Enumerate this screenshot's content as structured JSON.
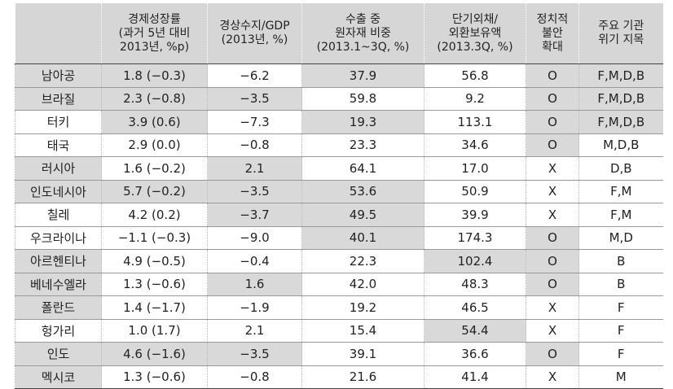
{
  "table": {
    "header": [
      "",
      "경제성장률\n(과거 5년 대비\n2013년, %p)",
      "경상수지/GDP\n(2013년, %)",
      "수출 중\n원자재 비중\n(2013.1~3Q, %)",
      "단기외채/\n외환보유액\n(2013.3Q, %)",
      "정치적\n불안\n확대",
      "주요 기관\n위기 지목"
    ],
    "rows": [
      [
        "남아공",
        "1.8 (−0.3)",
        "−6.2",
        "37.9",
        "56.8",
        "O",
        "F,M,D,B"
      ],
      [
        "브라질",
        "2.3 (−0.8)",
        "−3.5",
        "59.8",
        "9.2",
        "O",
        "F,M,D,B"
      ],
      [
        "터키",
        "3.9 (0.6)",
        "−7.3",
        "19.3",
        "113.1",
        "O",
        "F,M,D,B"
      ],
      [
        "태국",
        "2.9 (0.0)",
        "−0.8",
        "23.3",
        "34.6",
        "O",
        "M,D,B"
      ],
      [
        "러시아",
        "1.6 (−0.2)",
        "2.1",
        "64.1",
        "17.0",
        "X",
        "D,B"
      ],
      [
        "인도네시아",
        "5.7 (−0.2)",
        "−3.5",
        "53.6",
        "50.9",
        "X",
        "F,M"
      ],
      [
        "칠레",
        "4.2 (0.2)",
        "−3.7",
        "49.5",
        "39.9",
        "X",
        "F,M"
      ],
      [
        "우크라이나",
        "−1.1 (−0.3)",
        "−9.0",
        "40.1",
        "174.3",
        "O",
        "M,D"
      ],
      [
        "아르헨티나",
        "4.9 (−0.5)",
        "−0.4",
        "22.3",
        "102.4",
        "O",
        "B"
      ],
      [
        "베네수엘라",
        "1.3 (−0.6)",
        "1.6",
        "42.0",
        "48.3",
        "O",
        "B"
      ],
      [
        "폴란드",
        "1.4 (−1.7)",
        "−1.9",
        "19.2",
        "46.5",
        "X",
        "F"
      ],
      [
        "헝가리",
        "1.0 (1.7)",
        "2.1",
        "15.4",
        "54.4",
        "X",
        "F"
      ],
      [
        "인도",
        "4.6 (−1.6)",
        "−3.5",
        "39.1",
        "36.6",
        "O",
        "F"
      ],
      [
        "멕시코",
        "1.3 (−0.6)",
        "−0.8",
        "21.6",
        "41.4",
        "X",
        "M"
      ]
    ]
  }
}
